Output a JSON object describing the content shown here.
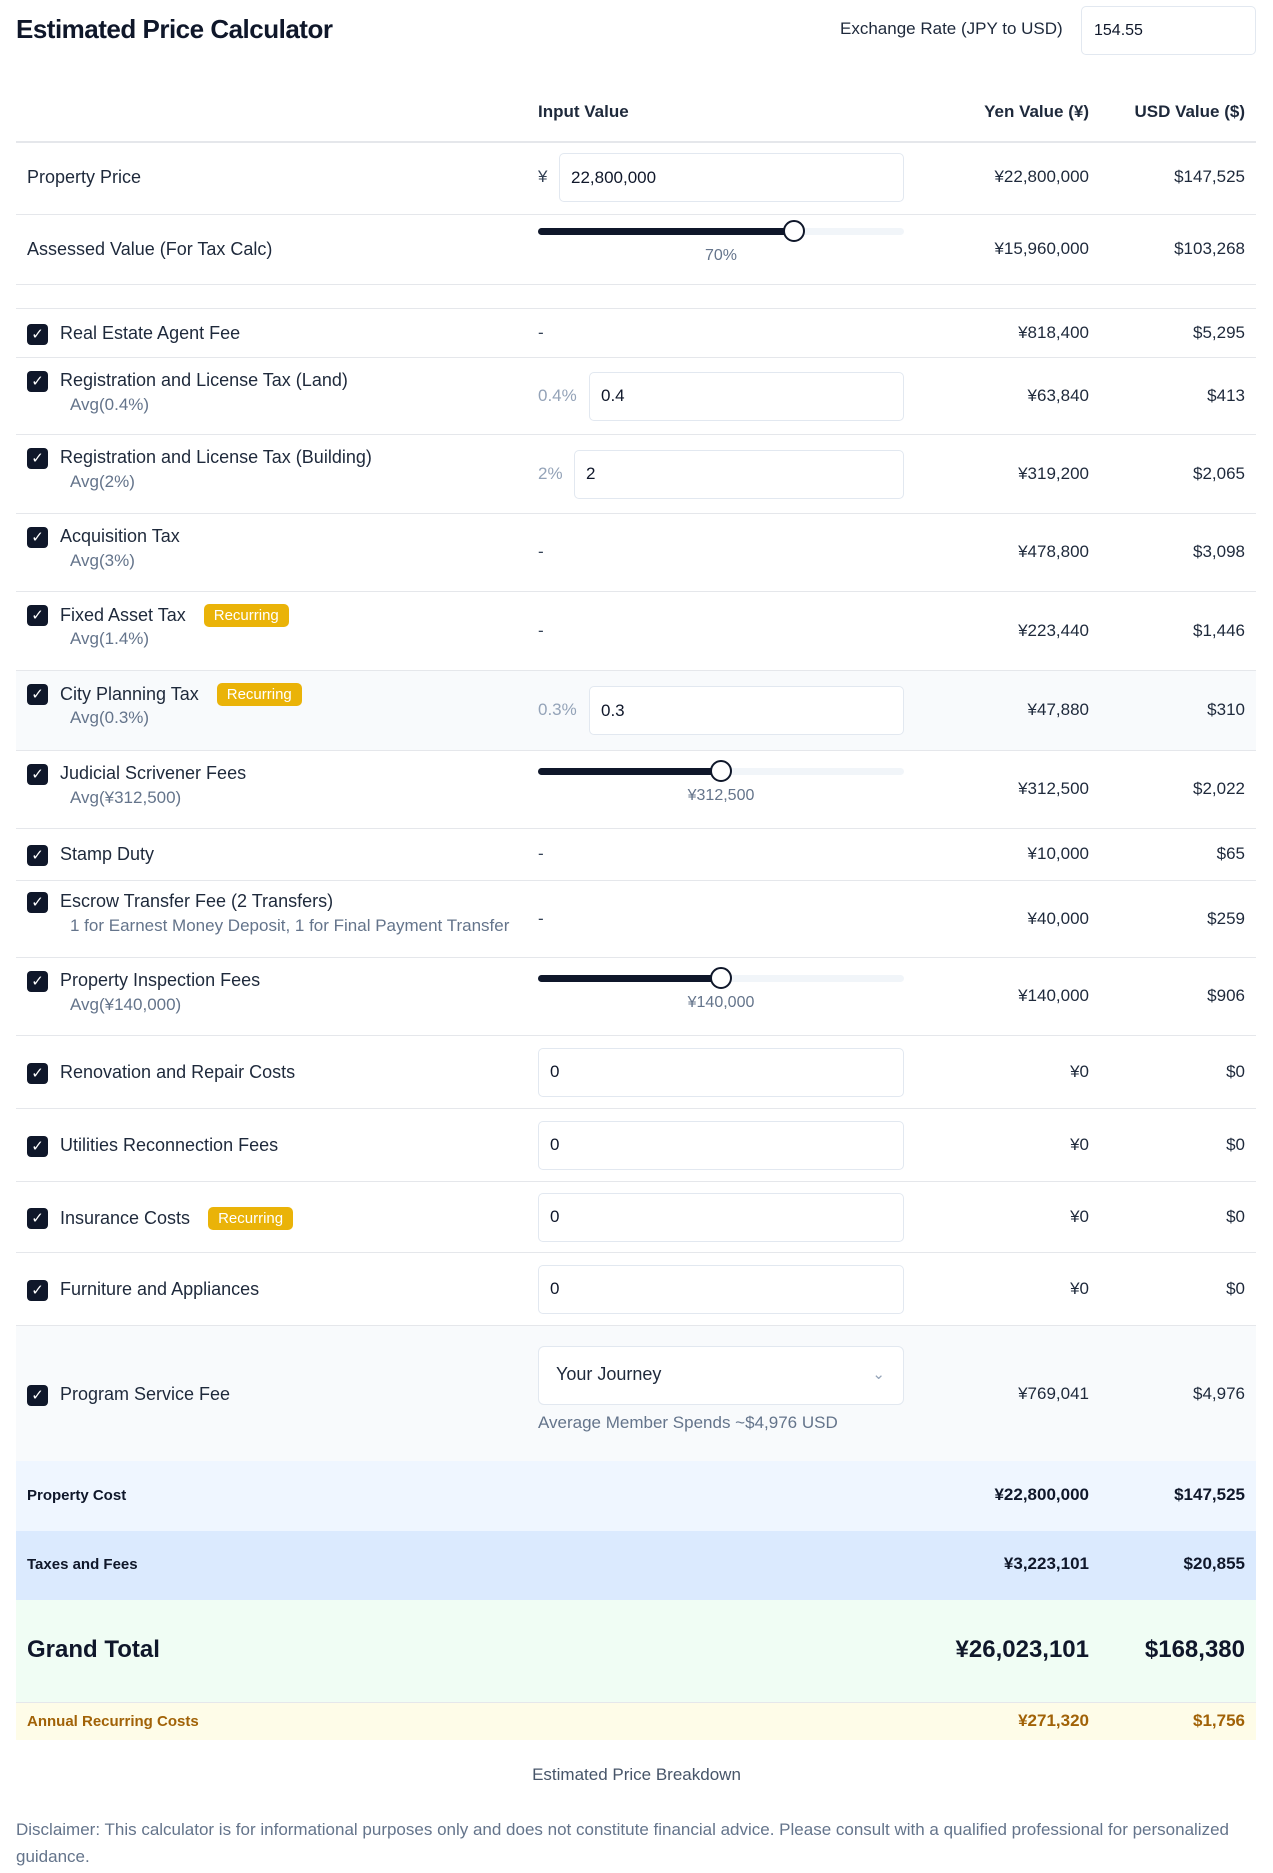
{
  "header": {
    "title": "Estimated Price Calculator",
    "exchange_label": "Exchange Rate (JPY to USD)",
    "exchange_value": "154.55"
  },
  "columns": {
    "input": "Input Value",
    "yen": "Yen Value (¥)",
    "usd": "USD Value ($)"
  },
  "property_price": {
    "label": "Property Price",
    "currency": "¥",
    "value": "22,800,000",
    "yen": "¥22,800,000",
    "usd": "$147,525"
  },
  "assessed": {
    "label": "Assessed Value (For Tax Calc)",
    "fraction": 0.7,
    "slider_label": "70%",
    "yen": "¥15,960,000",
    "usd": "$103,268"
  },
  "items": [
    {
      "label": "Real Estate Agent Fee",
      "type": "dash",
      "input": "-",
      "yen": "¥818,400",
      "usd": "$5,295",
      "checked": true
    },
    {
      "label": "Registration and License Tax (Land)",
      "sub": "Avg(0.4%)",
      "type": "pct",
      "pct": "0.4%",
      "input": "0.4",
      "yen": "¥63,840",
      "usd": "$413",
      "checked": true
    },
    {
      "label": "Registration and License Tax (Building)",
      "sub": "Avg(2%)",
      "type": "pct",
      "pct": "2%",
      "input": "2",
      "yen": "¥319,200",
      "usd": "$2,065",
      "checked": true
    },
    {
      "label": "Acquisition Tax",
      "sub": "Avg(3%)",
      "type": "dash",
      "input": "-",
      "yen": "¥478,800",
      "usd": "$3,098",
      "checked": true
    },
    {
      "label": "Fixed Asset Tax",
      "badge": "Recurring",
      "sub": "Avg(1.4%)",
      "type": "dash",
      "input": "-",
      "yen": "¥223,440",
      "usd": "$1,446",
      "checked": true
    },
    {
      "label": "City Planning Tax",
      "badge": "Recurring",
      "sub": "Avg(0.3%)",
      "type": "pct",
      "pct": "0.3%",
      "input": "0.3",
      "yen": "¥47,880",
      "usd": "$310",
      "checked": true
    },
    {
      "label": "Judicial Scrivener Fees",
      "sub": "Avg(¥312,500)",
      "type": "slider",
      "fraction": 0.5,
      "slider_label": "¥312,500",
      "yen": "¥312,500",
      "usd": "$2,022",
      "checked": true
    },
    {
      "label": "Stamp Duty",
      "type": "dash",
      "input": "-",
      "yen": "¥10,000",
      "usd": "$65",
      "checked": true
    },
    {
      "label": "Escrow Transfer Fee (2 Transfers)",
      "sub": "1 for Earnest Money Deposit, 1 for Final Payment Transfer",
      "type": "dash",
      "input": "-",
      "yen": "¥40,000",
      "usd": "$259",
      "checked": true
    },
    {
      "label": "Property Inspection Fees",
      "sub": "Avg(¥140,000)",
      "type": "slider",
      "fraction": 0.5,
      "slider_label": "¥140,000",
      "yen": "¥140,000",
      "usd": "$906",
      "checked": true
    },
    {
      "label": "Renovation and Repair Costs",
      "type": "input",
      "input": "0",
      "yen": "¥0",
      "usd": "$0",
      "checked": true
    },
    {
      "label": "Utilities Reconnection Fees",
      "type": "input",
      "input": "0",
      "yen": "¥0",
      "usd": "$0",
      "checked": true
    },
    {
      "label": "Insurance Costs",
      "badge": "Recurring",
      "type": "input",
      "input": "0",
      "yen": "¥0",
      "usd": "$0",
      "checked": true
    },
    {
      "label": "Furniture and Appliances",
      "type": "input",
      "input": "0",
      "yen": "¥0",
      "usd": "$0",
      "checked": true
    },
    {
      "label": "Program Service Fee",
      "type": "select",
      "input": "Your Journey",
      "note": "Average Member Spends ~$4,976 USD",
      "yen": "¥769,041",
      "usd": "$4,976",
      "checked": true
    }
  ],
  "summary": {
    "property_cost": {
      "label": "Property Cost",
      "yen": "¥22,800,000",
      "usd": "$147,525"
    },
    "taxes_fees": {
      "label": "Taxes and Fees",
      "yen": "¥3,223,101",
      "usd": "$20,855"
    },
    "grand_total": {
      "label": "Grand Total",
      "yen": "¥26,023,101",
      "usd": "$168,380"
    },
    "annual_recurring": {
      "label": "Annual Recurring Costs",
      "yen": "¥271,320",
      "usd": "$1,756"
    }
  },
  "caption": "Estimated Price Breakdown",
  "disclaimer": "Disclaimer: This calculator is for informational purposes only and does not constitute financial advice. Please consult with a qualified professional for personalized guidance.",
  "colors": {
    "accent": "#0f172a",
    "badge": "#eab308",
    "property_cost_bg": "#eff6ff",
    "taxes_bg": "#dbeafe",
    "grand_total_bg": "#f0fdf4",
    "annual_bg": "#fefce8",
    "annual_text": "#a16207"
  }
}
